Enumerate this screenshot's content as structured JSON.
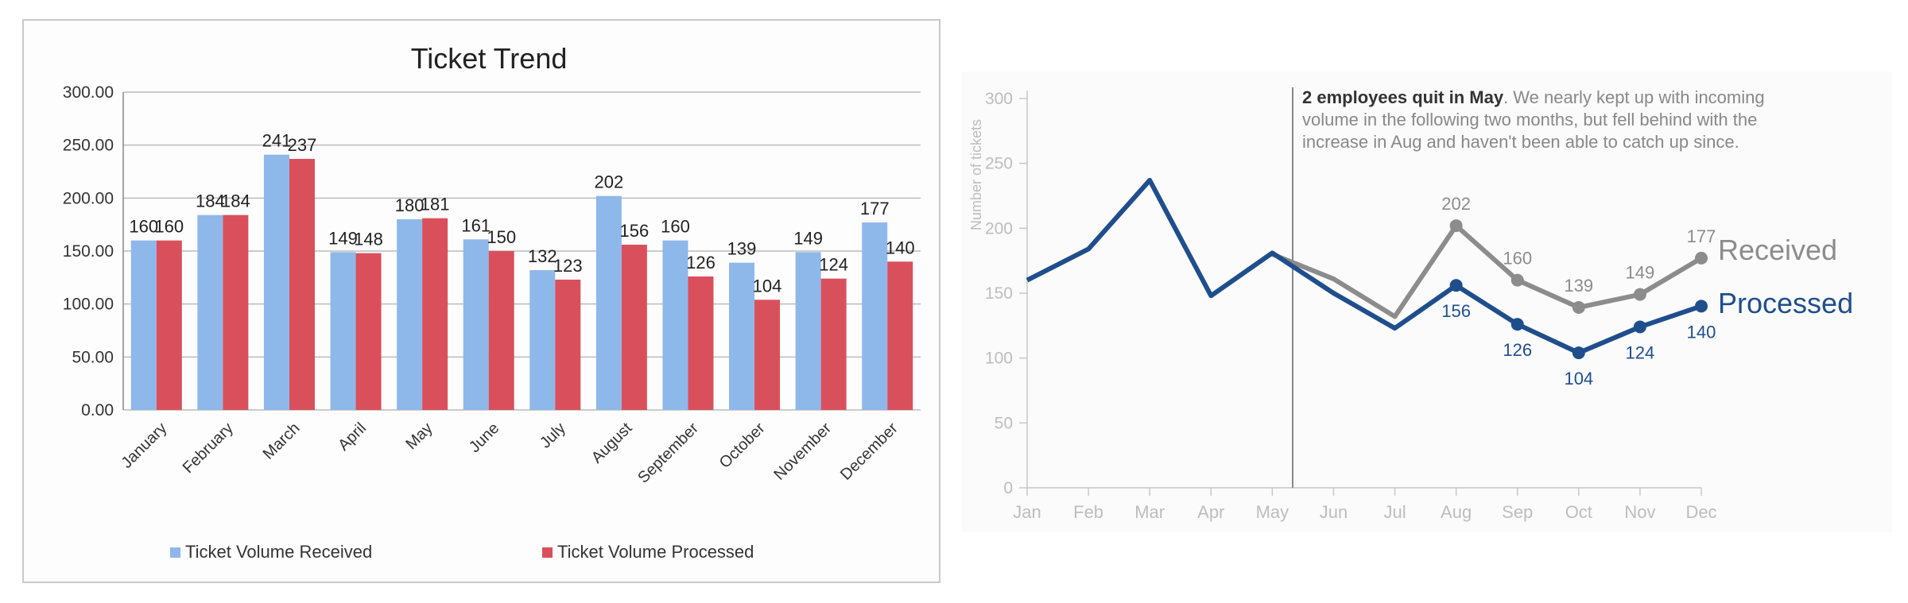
{
  "chart_data": [
    {
      "type": "bar",
      "title": "Ticket Trend",
      "categories": [
        "January",
        "February",
        "March",
        "April",
        "May",
        "June",
        "July",
        "August",
        "September",
        "October",
        "November",
        "December"
      ],
      "series": [
        {
          "name": "Ticket Volume Received",
          "values": [
            160,
            184,
            241,
            149,
            180,
            161,
            132,
            202,
            160,
            139,
            149,
            177
          ]
        },
        {
          "name": "Ticket Volume Processed",
          "values": [
            160,
            184,
            237,
            148,
            181,
            150,
            123,
            156,
            126,
            104,
            124,
            140
          ]
        }
      ],
      "yticks": [
        "0.00",
        "50.00",
        "100.00",
        "150.00",
        "200.00",
        "250.00",
        "300.00"
      ],
      "ylim": [
        0,
        300
      ],
      "grid": true,
      "legend_position": "bottom",
      "colors": {
        "received": "#8fb8ea",
        "processed": "#d9505c"
      }
    },
    {
      "type": "line",
      "ylabel": "Number of tickets",
      "categories": [
        "Jan",
        "Feb",
        "Mar",
        "Apr",
        "May",
        "Jun",
        "Jul",
        "Aug",
        "Sep",
        "Oct",
        "Nov",
        "Dec"
      ],
      "series": [
        {
          "name": "Received",
          "values": [
            160,
            184,
            241,
            149,
            180,
            161,
            132,
            202,
            160,
            139,
            149,
            177
          ]
        },
        {
          "name": "Processed",
          "values": [
            160,
            184,
            237,
            148,
            181,
            150,
            123,
            156,
            126,
            104,
            124,
            140
          ]
        }
      ],
      "labeled_points_received": [
        202,
        160,
        139,
        149,
        177
      ],
      "labeled_points_processed": [
        156,
        126,
        104,
        124,
        140
      ],
      "yticks": [
        "0",
        "50",
        "100",
        "150",
        "200",
        "250",
        "300"
      ],
      "ylim": [
        0,
        300
      ],
      "annotation": {
        "bold": "2 employees quit in May",
        "lines": [
          ". We nearly kept up with incoming",
          "volume in the following two months, but fell behind with the",
          "increase in Aug and haven't been able to catch up since."
        ]
      },
      "colors": {
        "received": "#8c8c8c",
        "processed": "#1f4e8c",
        "axis": "#c8c8c8",
        "tick_text": "#bdbdbd"
      }
    }
  ]
}
